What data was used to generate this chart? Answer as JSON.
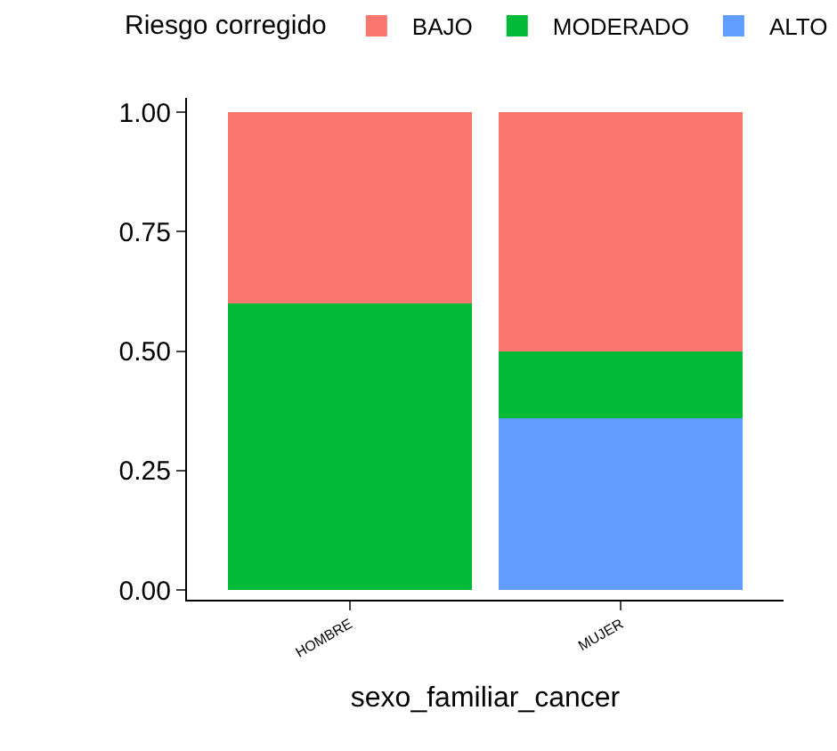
{
  "chart_data": {
    "type": "bar",
    "stacked": true,
    "xlabel": "sexo_familiar_cancer",
    "legend_title": "Riesgo corregido",
    "legend": "top",
    "categories": [
      "HOMBRE",
      "MUJER"
    ],
    "series": [
      {
        "name": "ALTO",
        "color": "#619cff",
        "values": [
          0,
          0.36
        ]
      },
      {
        "name": "MODERADO",
        "color": "#00ba38",
        "values": [
          0.6,
          0.14
        ]
      },
      {
        "name": "BAJO",
        "color": "#f8766d",
        "values": [
          0.4,
          0.5
        ]
      }
    ],
    "ylim": [
      -0.02,
      1.03
    ],
    "yticks": [
      {
        "value": 0,
        "label": "0.00"
      },
      {
        "value": 0.25,
        "label": "0.25"
      },
      {
        "value": 0.5,
        "label": "0.50"
      },
      {
        "value": 0.75,
        "label": "0.75"
      },
      {
        "value": 1,
        "label": "1.00"
      }
    ]
  }
}
